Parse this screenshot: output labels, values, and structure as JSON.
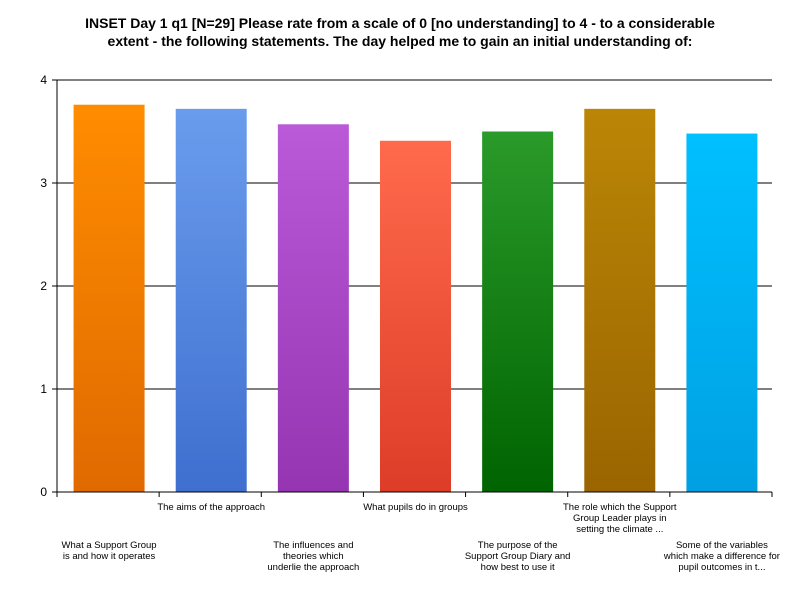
{
  "chart_data": {
    "type": "bar",
    "title": [
      "INSET Day 1 q1 [N=29]   Please rate from a scale of 0 [no understanding] to 4 - to a considerable",
      "extent - the following statements.  The day helped me to gain an initial understanding of:"
    ],
    "xlabel": "",
    "ylabel": "",
    "ylim": [
      0,
      4
    ],
    "yticks": [
      0,
      1,
      2,
      3,
      4
    ],
    "grid": "horizontal",
    "categories": [
      "What a Support Group is and how it operates",
      "The aims of the approach",
      "The influences and theories which underlie the approach",
      "What pupils do in groups",
      "The purpose of the Support Group Diary and how best to use it",
      "The role which the Support Group Leader plays in setting the climate ...",
      "Some of the variables which make a difference for pupil outcomes in t..."
    ],
    "category_label_lines": [
      [
        "What a Support Group",
        "is and how it operates"
      ],
      [
        "The aims of the approach"
      ],
      [
        "The influences and",
        "theories which",
        "underlie the approach"
      ],
      [
        "What pupils do in groups"
      ],
      [
        "The purpose of the",
        "Support Group Diary and",
        "how best to use it"
      ],
      [
        "The role which the Support",
        "Group Leader plays in",
        "setting the climate ..."
      ],
      [
        "Some of the variables",
        "which make a difference for",
        "pupil outcomes in t..."
      ]
    ],
    "values": [
      3.76,
      3.72,
      3.57,
      3.41,
      3.5,
      3.72,
      3.48
    ],
    "colors": [
      [
        "#ff8c00",
        "#e06a00"
      ],
      [
        "#6a9ced",
        "#3f6fcf"
      ],
      [
        "#bb5ad8",
        "#9535b2"
      ],
      [
        "#ff6a4c",
        "#dd3d28"
      ],
      [
        "#2a9a2a",
        "#006400"
      ],
      [
        "#bb8606",
        "#9a6500"
      ],
      [
        "#00c0ff",
        "#00a0e2"
      ]
    ]
  }
}
